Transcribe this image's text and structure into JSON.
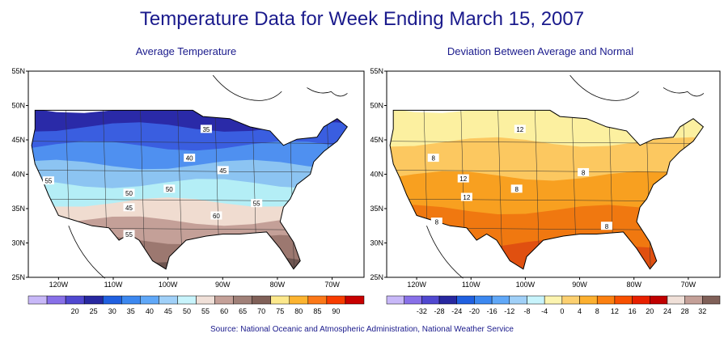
{
  "title": "Temperature Data for Week Ending March 15, 2007",
  "source": "Source:  National Oceanic and Atmospheric Administration, National Weather Service",
  "maps": [
    {
      "id": "avg",
      "subtitle": "Average Temperature",
      "lat_labels": [
        "55N",
        "50N",
        "45N",
        "40N",
        "35N",
        "30N",
        "25N"
      ],
      "lon_labels": [
        "120W",
        "110W",
        "100W",
        "90W",
        "80W",
        "70W"
      ],
      "bands": [
        {
          "color": "#2a2aa8"
        },
        {
          "color": "#3a5ee0"
        },
        {
          "color": "#4f90f0"
        },
        {
          "color": "#8cc4f2"
        },
        {
          "color": "#b4eef6"
        },
        {
          "color": "#f0dcd0"
        },
        {
          "color": "#c4a098"
        },
        {
          "color": "#9c7870"
        },
        {
          "color": "#6e5550"
        }
      ],
      "contour_labels": [
        "35",
        "40",
        "45",
        "50",
        "50",
        "45",
        "55",
        "55",
        "60",
        "55"
      ],
      "legend_colors": [
        "#c8b8f8",
        "#8870e8",
        "#5048d0",
        "#2828a0",
        "#2060e0",
        "#3c88f0",
        "#60a8f8",
        "#a0d0f8",
        "#c8f4fc",
        "#f0e0d8",
        "#c4a098",
        "#a08078",
        "#806058",
        "#fce88c",
        "#fcb430",
        "#fc7818",
        "#f83c00",
        "#c80000"
      ],
      "legend_labels": [
        "20",
        "25",
        "30",
        "35",
        "40",
        "45",
        "50",
        "55",
        "60",
        "65",
        "70",
        "75",
        "80",
        "85",
        "90"
      ]
    },
    {
      "id": "dev",
      "subtitle": "Deviation Between Average and Normal",
      "lat_labels": [
        "55N",
        "50N",
        "45N",
        "40N",
        "35N",
        "30N",
        "25N"
      ],
      "lon_labels": [
        "120W",
        "110W",
        "100W",
        "90W",
        "80W",
        "70W"
      ],
      "bands": [
        {
          "color": "#fcf0a0"
        },
        {
          "color": "#fcc860"
        },
        {
          "color": "#f8a020"
        },
        {
          "color": "#f07810"
        },
        {
          "color": "#e05010"
        }
      ],
      "contour_labels": [
        "12",
        "8",
        "12",
        "12",
        "8",
        "8",
        "8",
        "8"
      ],
      "legend_colors": [
        "#c8b8f8",
        "#8870e8",
        "#5048d0",
        "#2828a0",
        "#2060e0",
        "#3c88f0",
        "#60a8f8",
        "#a0d0f8",
        "#c8f4fc",
        "#fcf4b0",
        "#fcd070",
        "#fcb030",
        "#fc8010",
        "#f85000",
        "#e82000",
        "#c00000",
        "#f0e0d8",
        "#c4a098",
        "#806058"
      ],
      "legend_labels": [
        "-32",
        "-28",
        "-24",
        "-20",
        "-16",
        "-12",
        "-8",
        "-4",
        "0",
        "4",
        "8",
        "12",
        "16",
        "20",
        "24",
        "28",
        "32"
      ]
    }
  ]
}
